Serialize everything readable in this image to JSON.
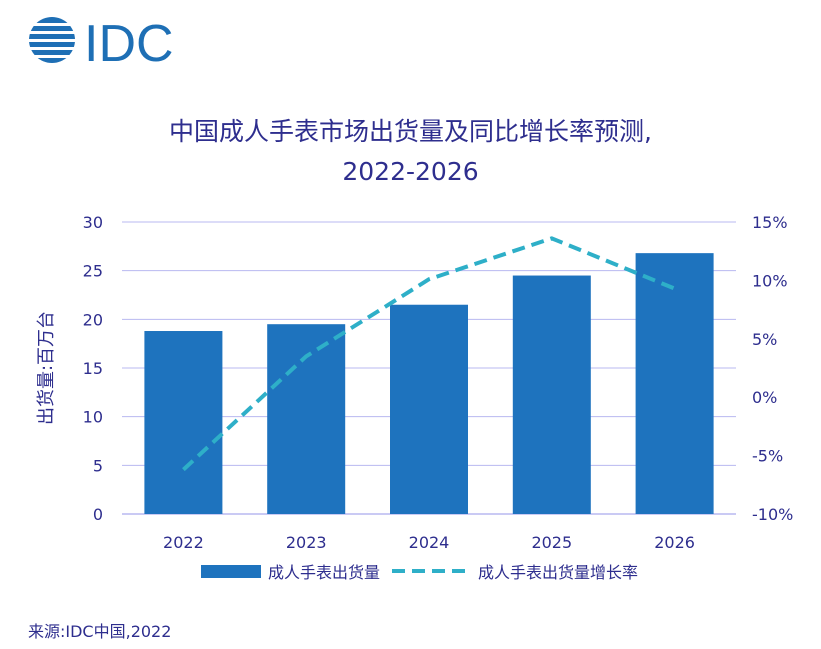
{
  "logo": {
    "text": "IDC",
    "color": "#1E6FB5"
  },
  "title": {
    "line1": "中国成人手表市场出货量及同比增长率预测,",
    "line2": "2022-2026"
  },
  "source": "来源:IDC中国,2022",
  "chart_data": {
    "type": "bar",
    "categories": [
      "2022",
      "2023",
      "2024",
      "2025",
      "2026"
    ],
    "series": [
      {
        "name": "成人手表出货量",
        "kind": "bar",
        "axis": "left",
        "color": "#1E73BE",
        "values": [
          18.8,
          19.5,
          21.5,
          24.5,
          26.8
        ]
      },
      {
        "name": "成人手表出货量增长率",
        "kind": "line",
        "axis": "right",
        "color": "#2EAFC8",
        "dashed": true,
        "values": [
          -6.2,
          3.5,
          10.1,
          13.6,
          9.3
        ]
      }
    ],
    "ylabel": "出货量:百万台",
    "ylim": [
      0,
      30
    ],
    "yticks": [
      "0",
      "5",
      "10",
      "15",
      "20",
      "25",
      "30"
    ],
    "y2lim": [
      -10,
      15
    ],
    "y2ticks": [
      "-10%",
      "-5%",
      "0%",
      "5%",
      "10%",
      "15%"
    ],
    "grid": true,
    "legend_position": "bottom"
  },
  "colors": {
    "text": "#2E2E8E",
    "grid": "#B8B8F0",
    "axis": "#2E2E8E"
  }
}
